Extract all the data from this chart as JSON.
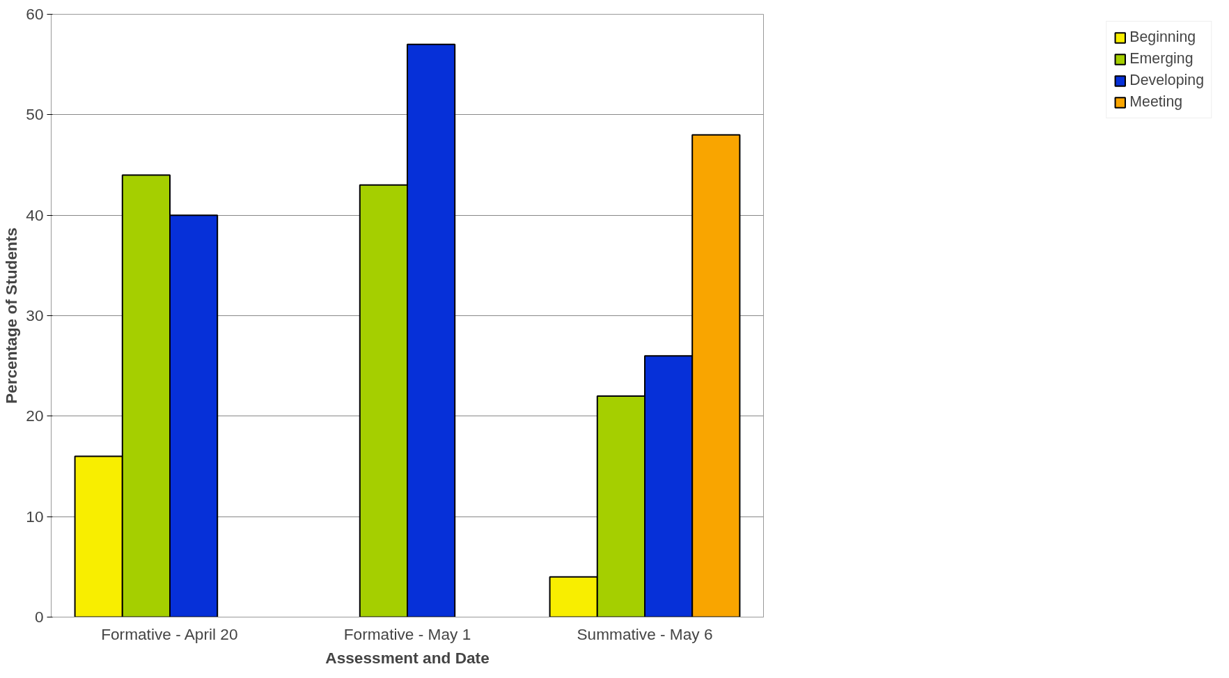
{
  "chart_data": {
    "type": "bar",
    "xlabel": "Assessment and Date",
    "ylabel": "Percentage of Students",
    "categories": [
      "Formative - April 20",
      "Formative - May 1",
      "Summative - May 6"
    ],
    "series": [
      {
        "name": "Beginning",
        "color": "#f8ee00",
        "values": [
          16,
          null,
          4
        ]
      },
      {
        "name": "Emerging",
        "color": "#a5cf00",
        "values": [
          44,
          43,
          22
        ]
      },
      {
        "name": "Developing",
        "color": "#0630d8",
        "values": [
          40,
          57,
          26
        ]
      },
      {
        "name": "Meeting",
        "color": "#f9a500",
        "values": [
          null,
          null,
          48
        ]
      }
    ],
    "ylim": [
      0,
      60
    ],
    "yticks": [
      0,
      10,
      20,
      30,
      40,
      50,
      60
    ],
    "grid": "y",
    "legend": "right"
  }
}
